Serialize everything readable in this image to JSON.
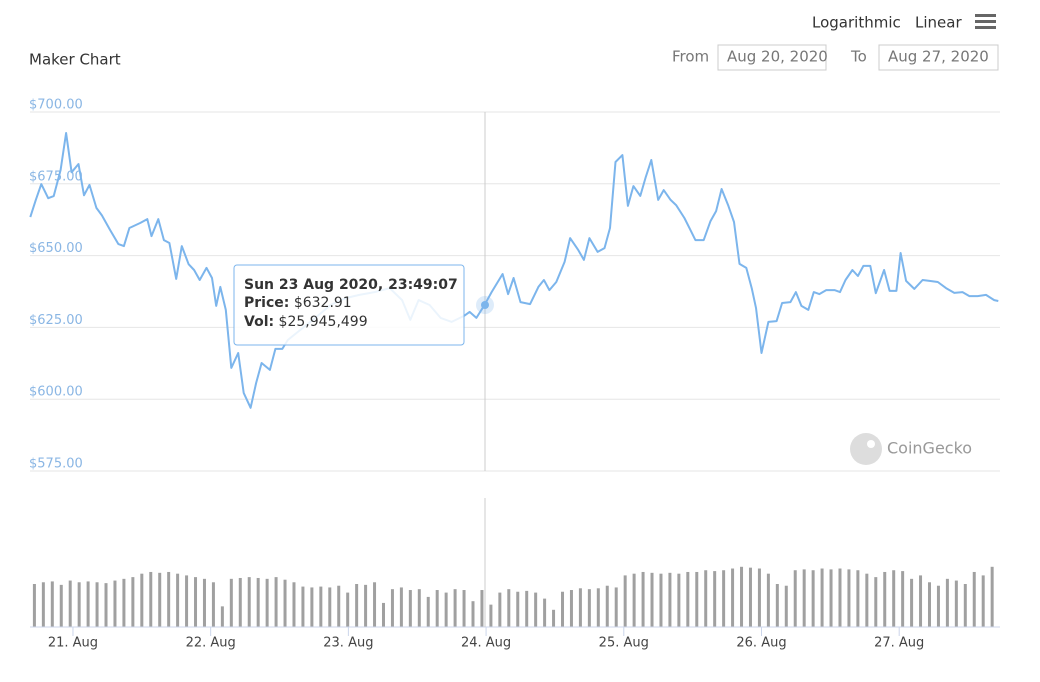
{
  "controls": {
    "scale_options": [
      "Logarithmic",
      "Linear"
    ],
    "from_label": "From",
    "from": "Aug 20, 2020",
    "to_label": "To",
    "to": "Aug 27, 2020"
  },
  "tooltip": {
    "date": "Sun 23 Aug 2020, 23:49:07",
    "price_label": "Price:",
    "price": "$632.91",
    "volume_label": "Vol:",
    "volume": "$25,945,499"
  },
  "watermark": "CoinGecko",
  "chart_data": [
    {
      "type": "line",
      "title": "Maker Chart",
      "color": "#7cb5ec",
      "grid": true,
      "x": [
        20.69,
        20.73,
        20.77,
        20.82,
        20.86,
        20.91,
        20.95,
        20.99,
        21.04,
        21.08,
        21.12,
        21.17,
        21.21,
        21.27,
        21.33,
        21.37,
        21.41,
        21.49,
        21.54,
        21.57,
        21.62,
        21.66,
        21.7,
        21.75,
        21.79,
        21.84,
        21.88,
        21.92,
        21.97,
        22.01,
        22.04,
        22.07,
        22.11,
        22.15,
        22.2,
        22.24,
        22.29,
        22.33,
        22.37,
        22.43,
        22.47,
        22.52,
        22.56,
        22.65,
        22.76,
        22.87,
        22.98,
        23.08,
        23.19,
        23.3,
        23.39,
        23.45,
        23.51,
        23.59,
        23.67,
        23.75,
        23.84,
        23.88,
        23.93,
        23.99,
        24.04,
        24.12,
        24.16,
        24.2,
        24.25,
        24.32,
        24.38,
        24.42,
        24.46,
        24.51,
        24.57,
        24.61,
        24.67,
        24.71,
        24.75,
        24.81,
        24.86,
        24.9,
        24.94,
        24.99,
        25.03,
        25.07,
        25.12,
        25.16,
        25.2,
        25.25,
        25.29,
        25.34,
        25.38,
        25.44,
        25.48,
        25.52,
        25.58,
        25.63,
        25.67,
        25.71,
        25.76,
        25.8,
        25.84,
        25.89,
        25.93,
        25.96,
        26.0,
        26.05,
        26.11,
        26.15,
        26.21,
        26.25,
        26.29,
        26.34,
        26.38,
        26.42,
        26.47,
        26.53,
        26.57,
        26.61,
        26.66,
        26.7,
        26.74,
        26.79,
        26.83,
        26.89,
        26.93,
        26.98,
        27.01,
        27.05,
        27.11,
        27.17,
        27.22,
        27.28,
        27.34,
        27.4,
        27.46,
        27.51,
        27.57,
        27.63,
        27.69,
        27.72
      ],
      "values": [
        663.4,
        669.4,
        674.9,
        670,
        670.7,
        679.8,
        692.7,
        679,
        681.9,
        671,
        674.6,
        666.6,
        664,
        658.9,
        654,
        653.3,
        659.6,
        661.4,
        662.7,
        656.8,
        662.7,
        655.4,
        654.4,
        641.9,
        653.3,
        647,
        645,
        641.5,
        645.7,
        642.2,
        632.5,
        639.1,
        631.1,
        610.9,
        616.1,
        602.2,
        597,
        605.6,
        612.6,
        610.2,
        617.5,
        617.5,
        620.6,
        624.1,
        628.3,
        632.8,
        635.2,
        636.3,
        637.3,
        638.7,
        634.5,
        627.6,
        634.5,
        632.8,
        628.3,
        626.9,
        629,
        630.4,
        628.3,
        632.91,
        637.3,
        643.6,
        636.6,
        642.2,
        633.8,
        633.1,
        639.1,
        641.5,
        638,
        640.8,
        647.8,
        656.1,
        651.9,
        648.5,
        656.1,
        651.3,
        652.6,
        659.6,
        682.6,
        685,
        667.3,
        674.2,
        670.8,
        677.4,
        683.3,
        669.4,
        672.8,
        669.4,
        667.6,
        663.1,
        659.3,
        655.4,
        655.4,
        662,
        665.5,
        673.2,
        667.3,
        661.7,
        647.1,
        645.7,
        638.4,
        631.8,
        616.1,
        626.9,
        627.2,
        633.5,
        633.8,
        637.3,
        632.5,
        631.1,
        637.3,
        636.6,
        638,
        638,
        637.3,
        641.5,
        645,
        642.9,
        646.4,
        646.4,
        636.9,
        645,
        637.7,
        637.7,
        650.9,
        641.2,
        638.4,
        641.5,
        641.2,
        640.8,
        638.7,
        637,
        637.3,
        635.9,
        635.9,
        636.3,
        634.5,
        634.2
      ],
      "xlim": [
        20.688,
        27.732
      ],
      "xticks": [
        {
          "value": 21,
          "label": "21. Aug"
        },
        {
          "value": 22,
          "label": "22. Aug"
        },
        {
          "value": 23,
          "label": "23. Aug"
        },
        {
          "value": 24,
          "label": "24. Aug"
        },
        {
          "value": 25,
          "label": "25. Aug"
        },
        {
          "value": 26,
          "label": "26. Aug"
        },
        {
          "value": 27,
          "label": "27. Aug"
        }
      ],
      "ylim": [
        575,
        700
      ],
      "yticks": [
        {
          "value": 575,
          "label": "$575.00"
        },
        {
          "value": 600,
          "label": "$600.00"
        },
        {
          "value": 625,
          "label": "$625.00"
        },
        {
          "value": 650,
          "label": "$650.00"
        },
        {
          "value": 675,
          "label": "$675.00"
        },
        {
          "value": 700,
          "label": "$700.00"
        }
      ]
    },
    {
      "type": "bar",
      "color": "#a0a0a0",
      "x": [
        20.72,
        20.785,
        20.85,
        20.915,
        20.98,
        21.045,
        21.11,
        21.175,
        21.24,
        21.305,
        21.37,
        21.435,
        21.5,
        21.565,
        21.63,
        21.695,
        21.76,
        21.825,
        21.89,
        21.955,
        22.02,
        22.085,
        22.15,
        22.215,
        22.28,
        22.345,
        22.41,
        22.475,
        22.54,
        22.605,
        22.67,
        22.735,
        22.8,
        22.865,
        22.93,
        22.995,
        23.06,
        23.125,
        23.19,
        23.255,
        23.32,
        23.385,
        23.45,
        23.515,
        23.58,
        23.645,
        23.71,
        23.775,
        23.84,
        23.905,
        23.97,
        24.035,
        24.1,
        24.165,
        24.23,
        24.295,
        24.36,
        24.425,
        24.49,
        24.555,
        24.62,
        24.685,
        24.75,
        24.815,
        24.88,
        24.945,
        25.01,
        25.075,
        25.14,
        25.205,
        25.27,
        25.335,
        25.4,
        25.465,
        25.53,
        25.595,
        25.66,
        25.725,
        25.79,
        25.855,
        25.92,
        25.985,
        26.05,
        26.115,
        26.18,
        26.245,
        26.31,
        26.375,
        26.44,
        26.505,
        26.57,
        26.635,
        26.7,
        26.765,
        26.83,
        26.895,
        26.96,
        27.025,
        27.09,
        27.155,
        27.22,
        27.285,
        27.35,
        27.415,
        27.48,
        27.545,
        27.61,
        27.675
      ],
      "values": [
        50000000,
        52000000,
        53000000,
        49000000,
        54000000,
        52000000,
        53000000,
        52000000,
        51000000,
        54000000,
        56000000,
        58000000,
        62000000,
        64000000,
        63000000,
        64000000,
        62000000,
        60000000,
        58000000,
        56000000,
        52000000,
        24000000,
        56000000,
        57000000,
        58000000,
        57000000,
        56000000,
        58000000,
        55000000,
        52000000,
        47000000,
        46000000,
        47000000,
        46000000,
        48000000,
        40000000,
        50000000,
        49000000,
        52000000,
        28000000,
        44000000,
        46000000,
        43000000,
        44000000,
        35000000,
        43000000,
        40000000,
        44000000,
        43000000,
        30000000,
        43000000,
        26000000,
        40000000,
        44000000,
        41000000,
        42000000,
        40000000,
        33000000,
        20000000,
        41000000,
        43000000,
        45000000,
        44000000,
        45000000,
        48000000,
        46000000,
        60000000,
        62000000,
        64000000,
        63000000,
        62000000,
        63000000,
        62000000,
        64000000,
        64000000,
        66000000,
        65000000,
        66000000,
        68000000,
        70000000,
        69000000,
        68000000,
        62000000,
        50000000,
        48000000,
        66000000,
        67000000,
        66000000,
        68000000,
        67000000,
        68000000,
        67000000,
        66000000,
        62000000,
        58000000,
        64000000,
        66000000,
        65000000,
        56000000,
        60000000,
        52000000,
        48000000,
        56000000,
        54000000,
        50000000,
        64000000,
        60000000,
        70000000
      ],
      "ylim": [
        0,
        150000000
      ]
    }
  ]
}
